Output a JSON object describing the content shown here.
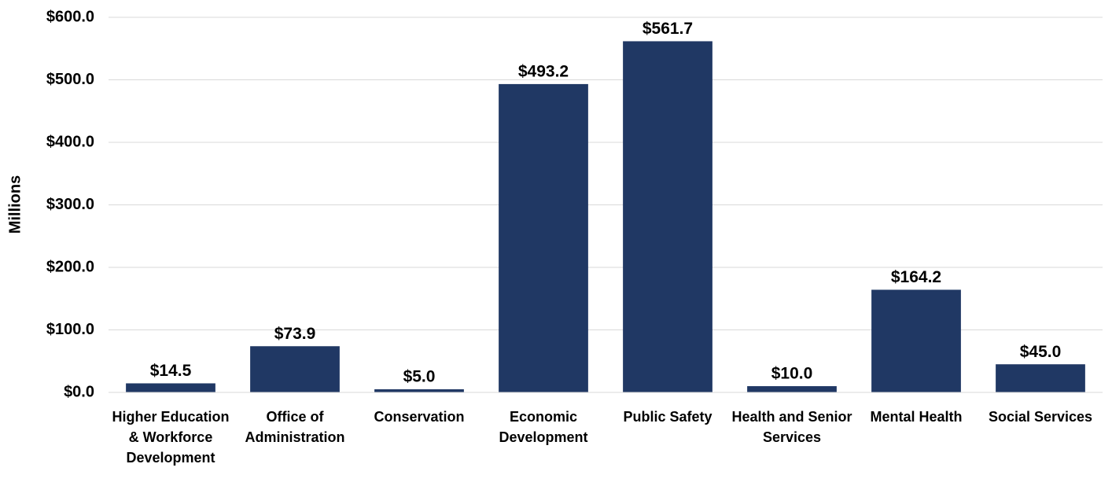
{
  "chart_data": {
    "type": "bar",
    "y_label": "Millions",
    "categories": [
      "Higher Education & Workforce Development",
      "Office of Administration",
      "Conservation",
      "Economic Development",
      "Public Safety",
      "Health and Senior Services",
      "Mental Health",
      "Social Services"
    ],
    "values": [
      14.5,
      73.9,
      5.0,
      493.2,
      561.7,
      10.0,
      164.2,
      45.0
    ],
    "value_labels": [
      "$14.5",
      "$73.9",
      "$5.0",
      "$493.2",
      "$561.7",
      "$10.0",
      "$164.2",
      "$45.0"
    ],
    "color": "#203864",
    "ylim": [
      0,
      600
    ],
    "yticks": [
      {
        "value": 0,
        "label": "$0.0"
      },
      {
        "value": 100,
        "label": "$100.0"
      },
      {
        "value": 200,
        "label": "$200.0"
      },
      {
        "value": 300,
        "label": "$300.0"
      },
      {
        "value": 400,
        "label": "$400.0"
      },
      {
        "value": 500,
        "label": "$500.0"
      },
      {
        "value": 600,
        "label": "$600.0"
      }
    ],
    "grid": true
  }
}
